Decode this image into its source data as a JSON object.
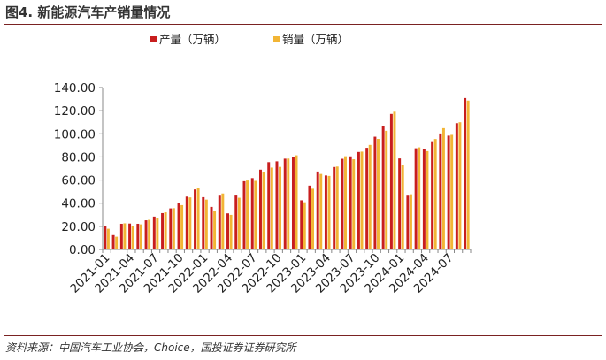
{
  "header": {
    "title": "图4. 新能源汽车产销量情况"
  },
  "footer": {
    "source": "资料来源：中国汽车工业协会，Choice，国投证券证券研究所"
  },
  "colors": {
    "production": "#c81e1e",
    "sales": "#f2b535",
    "rule": "#7a2222"
  },
  "chart_data": {
    "type": "bar",
    "title": "",
    "xlabel": "",
    "ylabel": "",
    "ylim": [
      0,
      140
    ],
    "yticks": [
      "0.00",
      "20.00",
      "40.00",
      "60.00",
      "80.00",
      "100.00",
      "120.00",
      "140.00"
    ],
    "legend_position": "top-center",
    "grid": false,
    "categories": [
      "2021-01",
      "2021-02",
      "2021-03",
      "2021-04",
      "2021-05",
      "2021-06",
      "2021-07",
      "2021-08",
      "2021-09",
      "2021-10",
      "2021-11",
      "2021-12",
      "2022-01",
      "2022-02",
      "2022-03",
      "2022-04",
      "2022-05",
      "2022-06",
      "2022-07",
      "2022-08",
      "2022-09",
      "2022-10",
      "2022-11",
      "2022-12",
      "2023-01",
      "2023-02",
      "2023-03",
      "2023-04",
      "2023-05",
      "2023-06",
      "2023-07",
      "2023-08",
      "2023-09",
      "2023-10",
      "2023-11",
      "2023-12",
      "2024-01",
      "2024-02",
      "2024-03",
      "2024-04",
      "2024-05",
      "2024-06",
      "2024-07",
      "2024-08",
      "2024-09"
    ],
    "xtick_labels": [
      "2021-01",
      "2021-04",
      "2021-07",
      "2021-10",
      "2022-01",
      "2022-04",
      "2022-07",
      "2022-10",
      "2023-01",
      "2023-04",
      "2023-07",
      "2023-10",
      "2024-01",
      "2024-04",
      "2024-07"
    ],
    "series": [
      {
        "name": "产量（万辆）",
        "values": [
          20.0,
          12.4,
          22.2,
          22.4,
          22.2,
          25.2,
          28.4,
          31.4,
          35.5,
          39.8,
          45.7,
          51.9,
          45.2,
          36.8,
          46.5,
          31.2,
          46.6,
          59.0,
          61.7,
          69.0,
          75.5,
          76.2,
          78.5,
          79.9,
          42.5,
          55.2,
          67.4,
          64.0,
          71.3,
          78.4,
          80.5,
          84.3,
          87.9,
          97.5,
          106.9,
          117.2,
          78.7,
          46.5,
          87.5,
          87.0,
          93.6,
          100.3,
          98.4,
          109.2,
          130.9
        ]
      },
      {
        "name": "销量（万辆）",
        "values": [
          17.9,
          11.0,
          22.6,
          20.6,
          21.7,
          25.6,
          27.1,
          32.1,
          35.7,
          38.3,
          45.0,
          53.1,
          43.1,
          33.4,
          48.4,
          29.9,
          44.7,
          59.6,
          59.3,
          66.6,
          70.8,
          71.4,
          78.6,
          81.4,
          40.8,
          52.5,
          65.3,
          63.6,
          71.7,
          80.6,
          78.0,
          84.6,
          90.4,
          95.6,
          102.6,
          119.1,
          72.9,
          47.7,
          88.3,
          85.0,
          95.5,
          104.9,
          99.1,
          110.0,
          128.7
        ]
      }
    ]
  }
}
